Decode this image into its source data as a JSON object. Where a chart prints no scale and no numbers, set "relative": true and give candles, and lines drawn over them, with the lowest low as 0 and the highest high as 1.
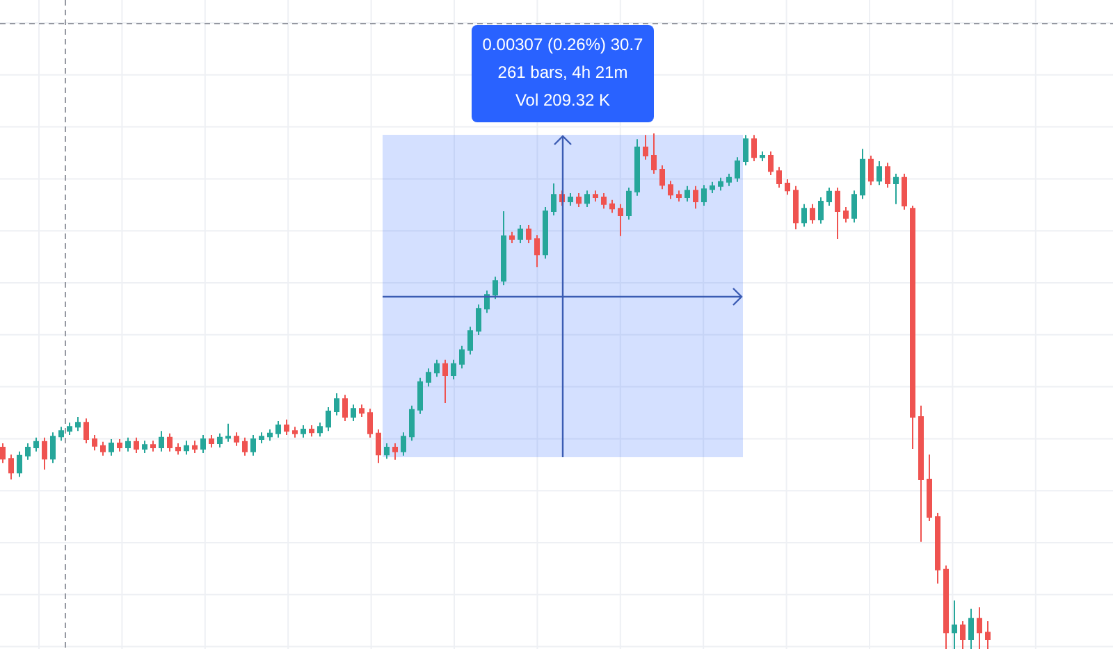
{
  "chart_data": {
    "type": "candlestick",
    "relative": true,
    "categories": [
      null,
      null,
      null,
      null,
      null,
      null,
      null,
      null,
      null,
      null,
      null,
      null,
      null,
      null,
      null,
      null,
      null,
      null,
      null,
      null,
      null,
      null,
      null,
      null,
      null,
      null,
      null,
      null,
      null,
      null,
      null,
      null,
      null,
      null,
      null,
      null,
      null,
      null,
      null,
      null,
      null,
      null,
      null,
      null,
      null,
      null,
      null,
      null,
      null,
      null,
      null,
      null,
      null,
      null,
      null,
      null,
      null,
      null,
      null,
      null,
      null,
      null,
      null,
      null,
      null,
      null,
      null,
      null,
      null,
      null,
      null,
      null,
      null,
      null,
      null,
      null,
      null,
      null,
      null,
      null,
      null,
      null,
      null,
      null,
      null,
      null,
      null,
      null,
      null,
      null,
      null,
      null,
      null,
      null,
      null,
      null,
      null,
      null,
      null,
      null,
      null,
      null,
      null,
      null,
      null,
      null,
      null,
      null,
      null,
      null,
      null,
      null,
      null,
      null,
      null,
      null,
      null,
      null,
      null
    ],
    "ohlc": [
      [
        0.391,
        0.399,
        0.361,
        0.369
      ],
      [
        0.369,
        0.377,
        0.329,
        0.342
      ],
      [
        0.342,
        0.383,
        0.334,
        0.375
      ],
      [
        0.375,
        0.399,
        0.367,
        0.391
      ],
      [
        0.391,
        0.41,
        0.383,
        0.402
      ],
      [
        0.402,
        0.41,
        0.348,
        0.369
      ],
      [
        0.369,
        0.42,
        0.361,
        0.412
      ],
      [
        0.412,
        0.431,
        0.404,
        0.423
      ],
      [
        0.423,
        0.439,
        0.415,
        0.431
      ],
      [
        0.431,
        0.45,
        0.423,
        0.439
      ],
      [
        0.439,
        0.447,
        0.399,
        0.407
      ],
      [
        0.407,
        0.415,
        0.385,
        0.394
      ],
      [
        0.394,
        0.402,
        0.375,
        0.383
      ],
      [
        0.383,
        0.407,
        0.375,
        0.399
      ],
      [
        0.399,
        0.407,
        0.383,
        0.391
      ],
      [
        0.391,
        0.41,
        0.383,
        0.402
      ],
      [
        0.402,
        0.41,
        0.38,
        0.388
      ],
      [
        0.388,
        0.404,
        0.38,
        0.396
      ],
      [
        0.396,
        0.404,
        0.383,
        0.391
      ],
      [
        0.391,
        0.423,
        0.383,
        0.41
      ],
      [
        0.41,
        0.418,
        0.383,
        0.391
      ],
      [
        0.391,
        0.399,
        0.377,
        0.385
      ],
      [
        0.385,
        0.404,
        0.377,
        0.394
      ],
      [
        0.394,
        0.404,
        0.38,
        0.388
      ],
      [
        0.388,
        0.415,
        0.38,
        0.407
      ],
      [
        0.407,
        0.415,
        0.391,
        0.399
      ],
      [
        0.399,
        0.418,
        0.391,
        0.41
      ],
      [
        0.41,
        0.437,
        0.402,
        0.412
      ],
      [
        0.412,
        0.42,
        0.394,
        0.402
      ],
      [
        0.402,
        0.41,
        0.375,
        0.383
      ],
      [
        0.383,
        0.415,
        0.375,
        0.407
      ],
      [
        0.407,
        0.42,
        0.399,
        0.412
      ],
      [
        0.412,
        0.426,
        0.404,
        0.418
      ],
      [
        0.418,
        0.442,
        0.41,
        0.434
      ],
      [
        0.434,
        0.445,
        0.415,
        0.423
      ],
      [
        0.423,
        0.431,
        0.41,
        0.418
      ],
      [
        0.418,
        0.434,
        0.41,
        0.426
      ],
      [
        0.426,
        0.434,
        0.412,
        0.42
      ],
      [
        0.42,
        0.439,
        0.412,
        0.431
      ],
      [
        0.431,
        0.469,
        0.423,
        0.461
      ],
      [
        0.461,
        0.496,
        0.453,
        0.485
      ],
      [
        0.485,
        0.493,
        0.442,
        0.45
      ],
      [
        0.45,
        0.474,
        0.442,
        0.466
      ],
      [
        0.466,
        0.474,
        0.45,
        0.458
      ],
      [
        0.458,
        0.466,
        0.41,
        0.418
      ],
      [
        0.418,
        0.426,
        0.361,
        0.377
      ],
      [
        0.377,
        0.399,
        0.369,
        0.391
      ],
      [
        0.391,
        0.399,
        0.367,
        0.383
      ],
      [
        0.383,
        0.42,
        0.375,
        0.412
      ],
      [
        0.412,
        0.472,
        0.404,
        0.464
      ],
      [
        0.464,
        0.526,
        0.456,
        0.518
      ],
      [
        0.518,
        0.544,
        0.509,
        0.536
      ],
      [
        0.536,
        0.561,
        0.528,
        0.553
      ],
      [
        0.553,
        0.561,
        0.477,
        0.531
      ],
      [
        0.531,
        0.561,
        0.523,
        0.553
      ],
      [
        0.553,
        0.588,
        0.544,
        0.58
      ],
      [
        0.58,
        0.625,
        0.571,
        0.617
      ],
      [
        0.617,
        0.668,
        0.609,
        0.66
      ],
      [
        0.66,
        0.695,
        0.652,
        0.687
      ],
      [
        0.687,
        0.722,
        0.679,
        0.714
      ],
      [
        0.714,
        0.849,
        0.706,
        0.801
      ],
      [
        0.801,
        0.809,
        0.787,
        0.795
      ],
      [
        0.795,
        0.822,
        0.787,
        0.814
      ],
      [
        0.814,
        0.822,
        0.787,
        0.795
      ],
      [
        0.795,
        0.803,
        0.741,
        0.765
      ],
      [
        0.765,
        0.857,
        0.757,
        0.849
      ],
      [
        0.849,
        0.903,
        0.841,
        0.881
      ],
      [
        0.881,
        0.889,
        0.86,
        0.868
      ],
      [
        0.868,
        0.884,
        0.86,
        0.876
      ],
      [
        0.876,
        0.884,
        0.857,
        0.865
      ],
      [
        0.865,
        0.889,
        0.857,
        0.881
      ],
      [
        0.881,
        0.889,
        0.868,
        0.876
      ],
      [
        0.876,
        0.884,
        0.854,
        0.863
      ],
      [
        0.863,
        0.871,
        0.846,
        0.854
      ],
      [
        0.854,
        0.863,
        0.801,
        0.841
      ],
      [
        0.841,
        0.895,
        0.833,
        0.887
      ],
      [
        0.887,
        0.989,
        0.879,
        0.973
      ],
      [
        0.973,
        0.997,
        0.949,
        0.957
      ],
      [
        0.957,
        1,
        0.922,
        0.93
      ],
      [
        0.93,
        0.938,
        0.892,
        0.9
      ],
      [
        0.9,
        0.908,
        0.873,
        0.881
      ],
      [
        0.881,
        0.889,
        0.868,
        0.876
      ],
      [
        0.876,
        0.898,
        0.868,
        0.889
      ],
      [
        0.889,
        0.898,
        0.854,
        0.868
      ],
      [
        0.868,
        0.9,
        0.86,
        0.892
      ],
      [
        0.892,
        0.906,
        0.884,
        0.898
      ],
      [
        0.898,
        0.914,
        0.889,
        0.906
      ],
      [
        0.906,
        0.922,
        0.898,
        0.914
      ],
      [
        0.914,
        0.954,
        0.906,
        0.946
      ],
      [
        0.946,
        0.997,
        0.938,
        0.989
      ],
      [
        0.989,
        0.997,
        0.946,
        0.954
      ],
      [
        0.954,
        0.965,
        0.946,
        0.957
      ],
      [
        0.957,
        0.965,
        0.919,
        0.927
      ],
      [
        0.927,
        0.935,
        0.895,
        0.903
      ],
      [
        0.903,
        0.911,
        0.881,
        0.889
      ],
      [
        0.889,
        0.898,
        0.814,
        0.827
      ],
      [
        0.827,
        0.863,
        0.819,
        0.854
      ],
      [
        0.854,
        0.863,
        0.825,
        0.833
      ],
      [
        0.833,
        0.876,
        0.825,
        0.868
      ],
      [
        0.868,
        0.895,
        0.86,
        0.887
      ],
      [
        0.887,
        0.895,
        0.795,
        0.849
      ],
      [
        0.849,
        0.857,
        0.827,
        0.836
      ],
      [
        0.836,
        0.889,
        0.827,
        0.881
      ],
      [
        0.881,
        0.97,
        0.873,
        0.949
      ],
      [
        0.949,
        0.957,
        0.9,
        0.908
      ],
      [
        0.908,
        0.946,
        0.9,
        0.935
      ],
      [
        0.935,
        0.943,
        0.895,
        0.903
      ],
      [
        0.903,
        0.922,
        0.863,
        0.914
      ],
      [
        0.914,
        0.922,
        0.852,
        0.86
      ],
      [
        0.854,
        0.86,
        0.388,
        0.45
      ],
      [
        0.45,
        0.472,
        0.208,
        0.329
      ],
      [
        0.329,
        0.377,
        0.248,
        0.256
      ],
      [
        0.256,
        0.264,
        0.127,
        0.154
      ],
      [
        0.154,
        0.162,
        0,
        0.032
      ],
      [
        0.032,
        0.094,
        0,
        0.046
      ],
      [
        0.046,
        0.054,
        0,
        0.019
      ],
      [
        0.019,
        0.078,
        0,
        0.059
      ],
      [
        0.059,
        0.081,
        0,
        0.032
      ],
      [
        0.032,
        0.054,
        0,
        0.019
      ]
    ],
    "colors": [
      "#ef5350",
      "#ef5350",
      "#26a69a",
      "#26a69a",
      "#26a69a",
      "#ef5350",
      "#26a69a",
      "#26a69a",
      "#26a69a",
      "#26a69a",
      "#ef5350",
      "#ef5350",
      "#ef5350",
      "#26a69a",
      "#ef5350",
      "#26a69a",
      "#ef5350",
      "#26a69a",
      "#ef5350",
      "#26a69a",
      "#ef5350",
      "#ef5350",
      "#26a69a",
      "#ef5350",
      "#26a69a",
      "#ef5350",
      "#26a69a",
      "#26a69a",
      "#ef5350",
      "#ef5350",
      "#26a69a",
      "#26a69a",
      "#26a69a",
      "#26a69a",
      "#ef5350",
      "#ef5350",
      "#26a69a",
      "#ef5350",
      "#26a69a",
      "#26a69a",
      "#26a69a",
      "#ef5350",
      "#26a69a",
      "#ef5350",
      "#ef5350",
      "#ef5350",
      "#26a69a",
      "#ef5350",
      "#26a69a",
      "#26a69a",
      "#26a69a",
      "#26a69a",
      "#26a69a",
      "#ef5350",
      "#26a69a",
      "#26a69a",
      "#26a69a",
      "#26a69a",
      "#26a69a",
      "#26a69a",
      "#26a69a",
      "#ef5350",
      "#26a69a",
      "#ef5350",
      "#ef5350",
      "#26a69a",
      "#26a69a",
      "#ef5350",
      "#26a69a",
      "#ef5350",
      "#26a69a",
      "#ef5350",
      "#ef5350",
      "#ef5350",
      "#ef5350",
      "#26a69a",
      "#26a69a",
      "#ef5350",
      "#ef5350",
      "#ef5350",
      "#ef5350",
      "#ef5350",
      "#26a69a",
      "#ef5350",
      "#26a69a",
      "#26a69a",
      "#26a69a",
      "#26a69a",
      "#26a69a",
      "#26a69a",
      "#ef5350",
      "#26a69a",
      "#ef5350",
      "#ef5350",
      "#ef5350",
      "#ef5350",
      "#26a69a",
      "#ef5350",
      "#26a69a",
      "#26a69a",
      "#ef5350",
      "#ef5350",
      "#26a69a",
      "#26a69a",
      "#ef5350",
      "#26a69a",
      "#ef5350",
      "#26a69a",
      "#ef5350",
      "#ef5350",
      "#ef5350",
      "#ef5350",
      "#ef5350",
      "#ef5350",
      "#26a69a",
      "#ef5350",
      "#26a69a",
      "#ef5350",
      "#ef5350"
    ],
    "annotations": [
      "0.00307 (0.26%) 30.7",
      "261 bars, 4h 21m",
      "Vol 209.32 K"
    ]
  }
}
